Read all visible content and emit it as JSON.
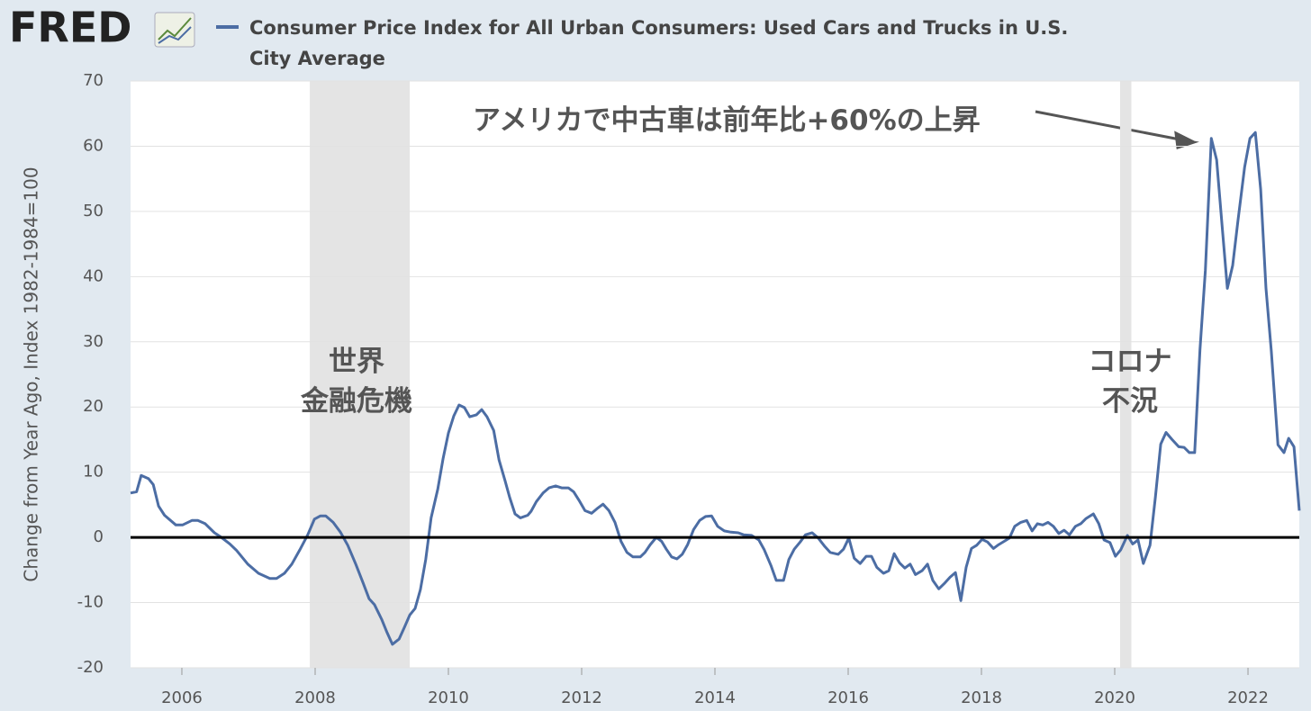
{
  "chart_data": {
    "type": "line",
    "logo": "FRED",
    "y_label": "Change from Year Ago, Index 1982-1984=100",
    "annotations": [
      "アメリカで中古車は前年比+60%の上昇",
      "世界\n金融危機",
      "コロナ\n不況"
    ],
    "recessions": [
      [
        2007.92,
        2009.42
      ],
      [
        2020.08,
        2020.25
      ]
    ],
    "xlim": [
      2005.23,
      2022.77
    ],
    "xticks": [
      2006,
      2008,
      2010,
      2012,
      2014,
      2016,
      2018,
      2020,
      2022
    ],
    "ylim": [
      -20,
      70
    ],
    "yticks": [
      -20,
      -10,
      0,
      10,
      20,
      30,
      40,
      50,
      60,
      70
    ],
    "grid": true,
    "x": [
      2005.23,
      2005.32,
      2005.39,
      2005.5,
      2005.57,
      2005.65,
      2005.74,
      2005.91,
      2006.01,
      2006.15,
      2006.24,
      2006.35,
      2006.49,
      2006.58,
      2006.72,
      2006.82,
      2006.99,
      2007.15,
      2007.32,
      2007.42,
      2007.54,
      2007.65,
      2007.77,
      2007.89,
      2007.99,
      2008.08,
      2008.16,
      2008.27,
      2008.38,
      2008.49,
      2008.61,
      2008.72,
      2008.81,
      2008.89,
      2009.0,
      2009.08,
      2009.16,
      2009.26,
      2009.34,
      2009.42,
      2009.5,
      2009.58,
      2009.66,
      2009.74,
      2009.84,
      2009.92,
      2010.0,
      2010.08,
      2010.16,
      2010.24,
      2010.32,
      2010.42,
      2010.5,
      2010.58,
      2010.68,
      2010.76,
      2010.85,
      2010.92,
      2011.0,
      2011.08,
      2011.19,
      2011.24,
      2011.32,
      2011.42,
      2011.51,
      2011.61,
      2011.7,
      2011.8,
      2011.88,
      2011.96,
      2012.05,
      2012.15,
      2012.23,
      2012.32,
      2012.41,
      2012.5,
      2012.59,
      2012.68,
      2012.77,
      2012.88,
      2012.95,
      2013.03,
      2013.12,
      2013.2,
      2013.27,
      2013.35,
      2013.43,
      2013.51,
      2013.59,
      2013.68,
      2013.77,
      2013.86,
      2013.95,
      2014.04,
      2014.14,
      2014.24,
      2014.35,
      2014.43,
      2014.55,
      2014.66,
      2014.74,
      2014.84,
      2014.92,
      2015.03,
      2015.11,
      2015.19,
      2015.28,
      2015.36,
      2015.46,
      2015.55,
      2015.65,
      2015.73,
      2015.85,
      2015.93,
      2016.01,
      2016.09,
      2016.18,
      2016.27,
      2016.35,
      2016.43,
      2016.53,
      2016.61,
      2016.69,
      2016.77,
      2016.85,
      2016.93,
      2017.01,
      2017.11,
      2017.19,
      2017.27,
      2017.36,
      2017.45,
      2017.53,
      2017.61,
      2017.69,
      2017.77,
      2017.85,
      2017.93,
      2018.01,
      2018.09,
      2018.18,
      2018.26,
      2018.34,
      2018.42,
      2018.5,
      2018.59,
      2018.68,
      2018.76,
      2018.84,
      2018.92,
      2019.0,
      2019.08,
      2019.16,
      2019.24,
      2019.32,
      2019.41,
      2019.49,
      2019.57,
      2019.68,
      2019.76,
      2019.84,
      2019.93,
      2020.01,
      2020.09,
      2020.19,
      2020.27,
      2020.35,
      2020.43,
      2020.53,
      2020.61,
      2020.69,
      2020.77,
      2020.86,
      2020.96,
      2021.04,
      2021.12,
      2021.2,
      2021.28,
      2021.36,
      2021.45,
      2021.53,
      2021.61,
      2021.69,
      2021.77,
      2021.85,
      2021.95,
      2022.03,
      2022.11,
      2022.19,
      2022.27,
      2022.35,
      2022.45,
      2022.54,
      2022.61,
      2022.69,
      2022.77
    ],
    "series": [
      {
        "name": "Consumer Price Index for All Urban Consumers: Used Cars and Trucks in U.S. City Average",
        "color": "#4c6da4",
        "values": [
          6.8,
          7,
          9.5,
          9,
          8.1,
          4.8,
          3.4,
          1.9,
          1.9,
          2.6,
          2.6,
          2.1,
          0.7,
          0.1,
          -1,
          -2,
          -4.1,
          -5.5,
          -6.3,
          -6.3,
          -5.5,
          -4.1,
          -1.9,
          0.4,
          2.8,
          3.3,
          3.3,
          2.3,
          0.8,
          -1.2,
          -4.1,
          -7,
          -9.4,
          -10.3,
          -12.6,
          -14.6,
          -16.4,
          -15.6,
          -13.8,
          -11.9,
          -10.9,
          -8,
          -3.4,
          3,
          7.4,
          12.1,
          16,
          18.6,
          20.3,
          19.9,
          18.5,
          18.8,
          19.6,
          18.5,
          16.4,
          11.9,
          8.7,
          6.1,
          3.6,
          3,
          3.4,
          4,
          5.5,
          6.8,
          7.6,
          7.9,
          7.6,
          7.6,
          7,
          5.7,
          4.1,
          3.7,
          4.4,
          5.1,
          4.1,
          2.3,
          -0.6,
          -2.3,
          -3,
          -3,
          -2.3,
          -1.1,
          0,
          -0.6,
          -1.8,
          -3,
          -3.3,
          -2.6,
          -1.1,
          1.2,
          2.6,
          3.2,
          3.3,
          1.7,
          1,
          0.8,
          0.7,
          0.4,
          0.3,
          -0.4,
          -1.9,
          -4.3,
          -6.6,
          -6.6,
          -3.4,
          -1.8,
          -0.7,
          0.4,
          0.7,
          -0.1,
          -1.4,
          -2.3,
          -2.6,
          -1.8,
          -0.1,
          -3.2,
          -4,
          -2.9,
          -2.9,
          -4.6,
          -5.5,
          -5.1,
          -2.5,
          -3.9,
          -4.7,
          -4.1,
          -5.7,
          -5.1,
          -4.1,
          -6.6,
          -7.9,
          -7,
          -6.1,
          -5.4,
          -9.7,
          -4.6,
          -1.7,
          -1.2,
          -0.3,
          -0.7,
          -1.7,
          -1.1,
          -0.6,
          -0.1,
          1.7,
          2.3,
          2.6,
          1,
          2.1,
          1.9,
          2.3,
          1.7,
          0.6,
          1.1,
          0.4,
          1.7,
          2.1,
          2.9,
          3.6,
          2.1,
          -0.4,
          -0.8,
          -2.9,
          -1.9,
          0.3,
          -1,
          -0.4,
          -4,
          -1.2,
          6.2,
          14.3,
          16.1,
          15,
          13.9,
          13.8,
          13,
          13,
          28.8,
          41,
          61.2,
          57.9,
          47.9,
          38.2,
          41.7,
          48.6,
          56.8,
          61.2,
          62.1,
          53.4,
          38.2,
          28.6,
          14.2,
          13,
          15.2,
          13.9,
          4.1
        ]
      }
    ]
  }
}
